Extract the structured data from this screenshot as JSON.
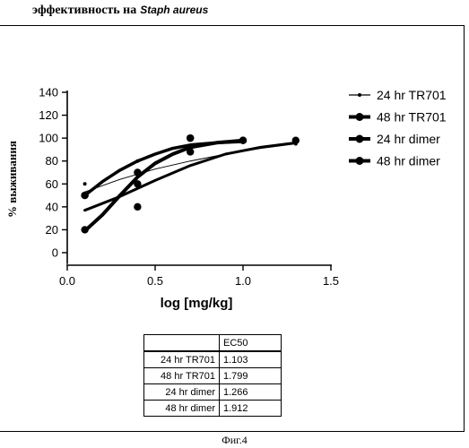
{
  "heading": {
    "text": "эффективность на",
    "organism": "Staph aureus"
  },
  "chart_data": {
    "type": "line",
    "xlabel": "log [mg/kg]",
    "ylabel": "% выживания",
    "xlim": [
      0.0,
      1.5
    ],
    "ylim": [
      -10,
      145
    ],
    "xticks": [
      "0.0",
      "0.5",
      "1.0",
      "1.5"
    ],
    "yticks": [
      "0",
      "20",
      "40",
      "60",
      "80",
      "100",
      "120",
      "140"
    ],
    "legend_position": "right",
    "series": [
      {
        "name": "24 hr TR701",
        "marker": "small",
        "points": [
          [
            0.1,
            60
          ],
          [
            0.4,
            80
          ],
          [
            0.7,
            90
          ],
          [
            1.3,
            95
          ]
        ],
        "curve": [
          [
            0.1,
            53
          ],
          [
            0.3,
            64
          ],
          [
            0.5,
            73
          ],
          [
            0.7,
            80
          ],
          [
            0.9,
            86
          ],
          [
            1.1,
            91
          ],
          [
            1.3,
            95
          ]
        ]
      },
      {
        "name": "48 hr TR701",
        "marker": "large",
        "points": [
          [
            0.1,
            20
          ],
          [
            0.4,
            60
          ],
          [
            0.7,
            100
          ],
          [
            1.0,
            98
          ]
        ],
        "curve": [
          [
            0.1,
            19
          ],
          [
            0.2,
            33
          ],
          [
            0.3,
            50
          ],
          [
            0.4,
            66
          ],
          [
            0.5,
            78
          ],
          [
            0.6,
            86
          ],
          [
            0.7,
            92
          ],
          [
            0.85,
            96
          ],
          [
            1.0,
            98
          ]
        ]
      },
      {
        "name": "24 hr dimer",
        "marker": "large",
        "points": [
          [
            0.1,
            50
          ],
          [
            0.4,
            40
          ],
          [
            0.7,
            88
          ],
          [
            1.3,
            98
          ]
        ],
        "curve": [
          [
            0.1,
            37
          ],
          [
            0.3,
            49
          ],
          [
            0.5,
            63
          ],
          [
            0.7,
            76
          ],
          [
            0.9,
            86
          ],
          [
            1.1,
            92
          ],
          [
            1.3,
            96
          ]
        ]
      },
      {
        "name": "48 hr dimer",
        "marker": "large",
        "points": [
          [
            0.1,
            50
          ],
          [
            0.4,
            70
          ],
          [
            0.7,
            100
          ],
          [
            1.0,
            98
          ]
        ],
        "curve": [
          [
            0.1,
            50
          ],
          [
            0.2,
            62
          ],
          [
            0.3,
            72
          ],
          [
            0.4,
            80
          ],
          [
            0.5,
            86
          ],
          [
            0.6,
            91
          ],
          [
            0.7,
            94
          ],
          [
            0.85,
            96
          ],
          [
            1.0,
            97
          ]
        ]
      }
    ]
  },
  "ec50_table": {
    "header": "EC50",
    "rows": [
      {
        "name": "24 hr TR701",
        "value": "1.103"
      },
      {
        "name": "48 hr TR701",
        "value": "1.799"
      },
      {
        "name": "24 hr dimer",
        "value": "1.266"
      },
      {
        "name": "48 hr dimer",
        "value": "1.912"
      }
    ]
  },
  "caption": "Фиг.4"
}
